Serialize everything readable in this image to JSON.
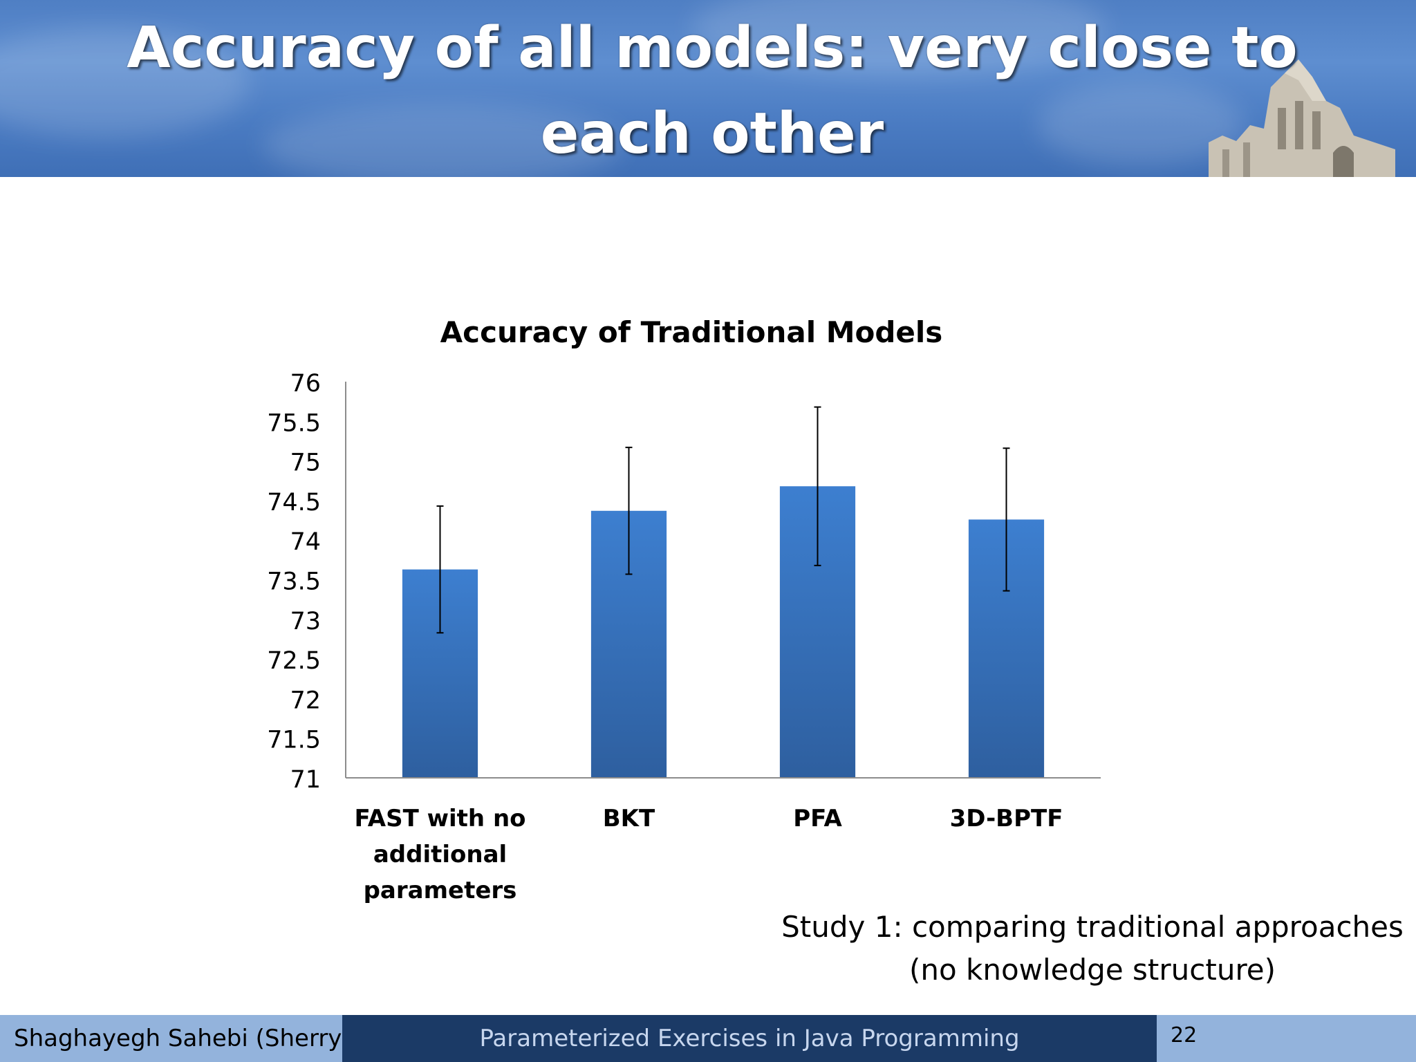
{
  "slide": {
    "title_line1": "Accuracy of all models: very close to",
    "title_line2": "each other"
  },
  "chart_data": {
    "type": "bar",
    "title": "Accuracy of Traditional Models",
    "categories": [
      [
        "FAST with no",
        "additional",
        "parameters"
      ],
      [
        "BKT"
      ],
      [
        "PFA"
      ],
      [
        "3D-BPTF"
      ]
    ],
    "values": [
      73.63,
      74.37,
      74.68,
      74.26
    ],
    "error_low": [
      72.83,
      73.57,
      73.68,
      73.36
    ],
    "error_high": [
      74.43,
      75.17,
      75.68,
      75.16
    ],
    "ylim": [
      71,
      76
    ],
    "yticks": [
      "71",
      "71.5",
      "72",
      "72.5",
      "73",
      "73.5",
      "74",
      "74.5",
      "75",
      "75.5",
      "76"
    ],
    "bar_color": "#3b78c7",
    "xlabel": "",
    "ylabel": "",
    "grid": false,
    "legend": "none"
  },
  "caption": {
    "line1": "Study 1: comparing traditional approaches",
    "line2": "(no knowledge structure)"
  },
  "footer": {
    "author": "Shaghayegh Sahebi (Sherry)",
    "talk_title": "Parameterized Exercises in Java Programming",
    "page_number": "22"
  }
}
